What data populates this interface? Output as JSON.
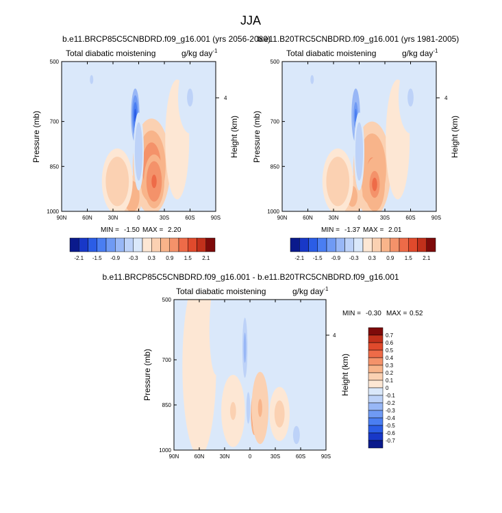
{
  "figure": {
    "title": "JJA"
  },
  "scales": {
    "top": {
      "levels": [
        "-2.1",
        "-1.5",
        "-0.9",
        "-0.3",
        "0.3",
        "0.9",
        "1.5",
        "2.1"
      ],
      "colors": [
        "#0a1a8c",
        "#1838c8",
        "#2b5de6",
        "#4a7ef2",
        "#6f9af4",
        "#98b7f6",
        "#bdd2f8",
        "#dae8fa",
        "#fde7d4",
        "#fbd1b2",
        "#f8b48a",
        "#f4926a",
        "#ee6b48",
        "#e04a2c",
        "#c2301b",
        "#7e0a0a"
      ]
    },
    "diff": {
      "levels": [
        "0.7",
        "0.6",
        "0.5",
        "0.4",
        "0.3",
        "0.2",
        "0.1",
        "0",
        "-0.1",
        "-0.2",
        "-0.3",
        "-0.4",
        "-0.5",
        "-0.6",
        "-0.7"
      ],
      "colors": [
        "#7e0a0a",
        "#c2301b",
        "#e04a2c",
        "#ee6b48",
        "#f4926a",
        "#f8b48a",
        "#fbd1b2",
        "#fde7d4",
        "#dae8fa",
        "#bdd2f8",
        "#98b7f6",
        "#6f9af4",
        "#4a7ef2",
        "#2b5de6",
        "#1838c8",
        "#0a1a8c"
      ]
    }
  },
  "chart_data": [
    {
      "type": "heatmap",
      "title": "b.e11.BRCP85C5CNBDRD.f09_g16.001 (yrs 2056-2080)",
      "left_string": "Total diabatic moistening",
      "units_base": "g/kg day",
      "units_exp": "-1",
      "x_ticks": [
        "90N",
        "60N",
        "30N",
        "0",
        "30S",
        "60S",
        "90S"
      ],
      "y_ticks": [
        "500",
        "700",
        "850",
        "1000"
      ],
      "ylabel": "Pressure (mb)",
      "right_ticks": [
        "4"
      ],
      "right_label": "Height (km)",
      "stats": {
        "min_label": "MIN =",
        "min": "-1.50",
        "max_label": "MAX =",
        "max": "2.20"
      },
      "x_range": [
        90,
        -90
      ],
      "y_range": [
        500,
        1000
      ],
      "features": [
        {
          "lat": -15,
          "p": 850,
          "value": 1.1,
          "lat_width": 22,
          "p_width": 160
        },
        {
          "lat": -18,
          "p": 900,
          "value": 1.4,
          "lat_width": 12,
          "p_width": 90
        },
        {
          "lat": 8,
          "p": 950,
          "value": 0.9,
          "lat_width": 12,
          "p_width": 70
        },
        {
          "lat": 25,
          "p": 900,
          "value": 0.5,
          "lat_width": 18,
          "p_width": 110
        },
        {
          "lat": -45,
          "p": 760,
          "value": 0.3,
          "lat_width": 14,
          "p_width": 200
        },
        {
          "lat": 4,
          "p": 680,
          "value": -1.5,
          "lat_width": 5,
          "p_width": 90
        },
        {
          "lat": 0,
          "p": 800,
          "value": -0.5,
          "lat_width": 6,
          "p_width": 130
        },
        {
          "lat": 55,
          "p": 560,
          "value": -0.3,
          "lat_width": 8,
          "p_width": 60
        },
        {
          "lat": -60,
          "p": 620,
          "value": -0.3,
          "lat_width": 14,
          "p_width": 120
        }
      ]
    },
    {
      "type": "heatmap",
      "title": "b.e11.B20TRC5CNBDRD.f09_g16.001 (yrs 1981-2005)",
      "left_string": "Total diabatic moistening",
      "units_base": "g/kg day",
      "units_exp": "-1",
      "x_ticks": [
        "90N",
        "60N",
        "30N",
        "0",
        "30S",
        "60S",
        "90S"
      ],
      "y_ticks": [
        "500",
        "700",
        "850",
        "1000"
      ],
      "ylabel": "Pressure (mb)",
      "right_ticks": [
        "4"
      ],
      "right_label": "Height (km)",
      "stats": {
        "min_label": "MIN =",
        "min": "-1.37",
        "max_label": "MAX =",
        "max": "2.01"
      },
      "x_range": [
        90,
        -90
      ],
      "y_range": [
        500,
        1000
      ],
      "features": [
        {
          "lat": -15,
          "p": 860,
          "value": 1.0,
          "lat_width": 22,
          "p_width": 160
        },
        {
          "lat": -18,
          "p": 910,
          "value": 1.3,
          "lat_width": 12,
          "p_width": 90
        },
        {
          "lat": 8,
          "p": 950,
          "value": 0.8,
          "lat_width": 12,
          "p_width": 70
        },
        {
          "lat": 25,
          "p": 900,
          "value": 0.5,
          "lat_width": 18,
          "p_width": 110
        },
        {
          "lat": -45,
          "p": 760,
          "value": 0.3,
          "lat_width": 14,
          "p_width": 200
        },
        {
          "lat": 4,
          "p": 680,
          "value": -1.3,
          "lat_width": 5,
          "p_width": 90
        },
        {
          "lat": 0,
          "p": 800,
          "value": -0.5,
          "lat_width": 6,
          "p_width": 130
        },
        {
          "lat": 55,
          "p": 560,
          "value": -0.3,
          "lat_width": 8,
          "p_width": 60
        },
        {
          "lat": -60,
          "p": 620,
          "value": -0.3,
          "lat_width": 14,
          "p_width": 120
        }
      ]
    },
    {
      "type": "heatmap",
      "title": "b.e11.BRCP85C5CNBDRD.f09_g16.001 - b.e11.B20TRC5CNBDRD.f09_g16.001",
      "left_string": "Total diabatic moistening",
      "units_base": "g/kg day",
      "units_exp": "-1",
      "x_ticks": [
        "90N",
        "60N",
        "30N",
        "0",
        "30S",
        "60S",
        "90S"
      ],
      "y_ticks": [
        "500",
        "700",
        "850",
        "1000"
      ],
      "ylabel": "Pressure (mb)",
      "right_ticks": [
        "4"
      ],
      "right_label": "Height (km)",
      "stats": {
        "min_label": "MIN =",
        "min": "-0.30",
        "max_label": "MAX =",
        "max": "0.52"
      },
      "x_range": [
        90,
        -90
      ],
      "y_range": [
        500,
        1000
      ],
      "features": [
        {
          "lat": -5,
          "p": 880,
          "value": 0.45,
          "lat_width": 4,
          "p_width": 70
        },
        {
          "lat": -12,
          "p": 860,
          "value": 0.2,
          "lat_width": 10,
          "p_width": 120
        },
        {
          "lat": -35,
          "p": 880,
          "value": 0.12,
          "lat_width": 12,
          "p_width": 90
        },
        {
          "lat": 20,
          "p": 870,
          "value": 0.1,
          "lat_width": 14,
          "p_width": 120
        },
        {
          "lat": 60,
          "p": 720,
          "value": 0.05,
          "lat_width": 20,
          "p_width": 300
        },
        {
          "lat": 6,
          "p": 660,
          "value": -0.28,
          "lat_width": 3,
          "p_width": 100
        },
        {
          "lat": 2,
          "p": 860,
          "value": -0.15,
          "lat_width": 3,
          "p_width": 70
        },
        {
          "lat": -55,
          "p": 950,
          "value": -0.12,
          "lat_width": 8,
          "p_width": 60
        },
        {
          "lat": 40,
          "p": 600,
          "value": -0.05,
          "lat_width": 8,
          "p_width": 150
        }
      ]
    }
  ]
}
